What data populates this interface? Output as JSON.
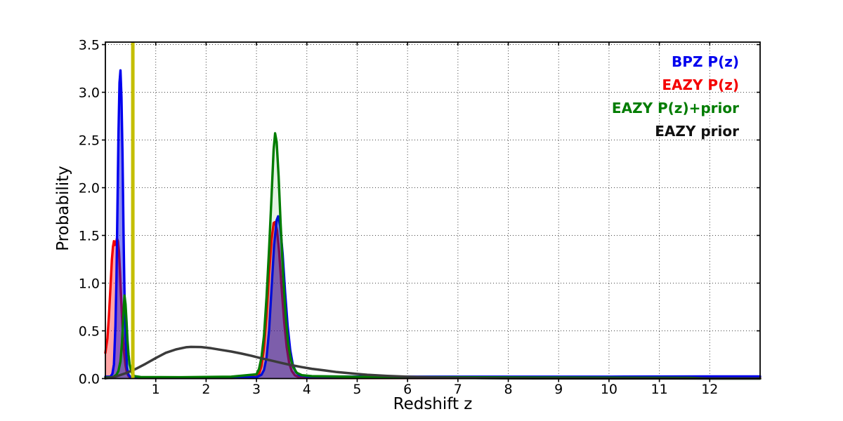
{
  "legend": {
    "items": [
      {
        "label": "BPZ P(z)",
        "color": "#0000ee"
      },
      {
        "label": "EAZY P(z)",
        "color": "#f40000"
      },
      {
        "label": "EAZY P(z)+prior",
        "color": "#007c00"
      },
      {
        "label": "EAZY prior",
        "color": "#111111"
      }
    ]
  },
  "chart_data": {
    "type": "line",
    "title": "",
    "xlabel": "Redshift z",
    "ylabel": "Probability",
    "xlim": [
      0,
      13
    ],
    "ylim": [
      0,
      3.53
    ],
    "grid": true,
    "grid_style": "dotted",
    "legend_position": "upper right",
    "x_ticks": [
      {
        "value": 1,
        "label": "1"
      },
      {
        "value": 2,
        "label": "2"
      },
      {
        "value": 3,
        "label": "3"
      },
      {
        "value": 4,
        "label": "4"
      },
      {
        "value": 5,
        "label": "5"
      },
      {
        "value": 6,
        "label": "6"
      },
      {
        "value": 7,
        "label": "7"
      },
      {
        "value": 8,
        "label": "8"
      },
      {
        "value": 9,
        "label": "9"
      },
      {
        "value": 10,
        "label": "10"
      },
      {
        "value": 11,
        "label": "11"
      },
      {
        "value": 12,
        "label": "12"
      }
    ],
    "y_ticks": [
      {
        "value": 0.0,
        "label": "0.0"
      },
      {
        "value": 0.5,
        "label": "0.5"
      },
      {
        "value": 1.0,
        "label": "1.0"
      },
      {
        "value": 1.5,
        "label": "1.5"
      },
      {
        "value": 2.0,
        "label": "2.0"
      },
      {
        "value": 2.5,
        "label": "2.5"
      },
      {
        "value": 3.0,
        "label": "3.0"
      },
      {
        "value": 3.5,
        "label": "3.5"
      }
    ],
    "vline": {
      "x": 0.545,
      "color": "#c4be00",
      "width": 5
    },
    "series": [
      {
        "name": "EAZY P(z)",
        "color": "#f40000",
        "fill": true,
        "fill_color": "#ff0000",
        "fill_opacity": 0.35,
        "line_width": 3.4,
        "points": [
          [
            0,
            0.27
          ],
          [
            0.04,
            0.42
          ],
          [
            0.07,
            0.65
          ],
          [
            0.1,
            0.95
          ],
          [
            0.13,
            1.25
          ],
          [
            0.15,
            1.38
          ],
          [
            0.17,
            1.44
          ],
          [
            0.19,
            1.4
          ],
          [
            0.21,
            1.42
          ],
          [
            0.23,
            1.47
          ],
          [
            0.25,
            1.44
          ],
          [
            0.27,
            1.33
          ],
          [
            0.29,
            1.12
          ],
          [
            0.31,
            0.88
          ],
          [
            0.33,
            0.64
          ],
          [
            0.35,
            0.44
          ],
          [
            0.37,
            0.28
          ],
          [
            0.4,
            0.14
          ],
          [
            0.43,
            0.06
          ],
          [
            0.46,
            0.025
          ],
          [
            0.5,
            0.01
          ],
          [
            0.7,
            0.006
          ],
          [
            1.5,
            0.005
          ],
          [
            2.5,
            0.006
          ],
          [
            3.0,
            0.02
          ],
          [
            3.05,
            0.05
          ],
          [
            3.1,
            0.13
          ],
          [
            3.15,
            0.32
          ],
          [
            3.2,
            0.66
          ],
          [
            3.25,
            1.1
          ],
          [
            3.3,
            1.46
          ],
          [
            3.34,
            1.63
          ],
          [
            3.37,
            1.64
          ],
          [
            3.41,
            1.55
          ],
          [
            3.45,
            1.33
          ],
          [
            3.5,
            0.95
          ],
          [
            3.55,
            0.6
          ],
          [
            3.6,
            0.33
          ],
          [
            3.65,
            0.16
          ],
          [
            3.7,
            0.08
          ],
          [
            3.76,
            0.035
          ],
          [
            3.85,
            0.012
          ],
          [
            4.0,
            0.006
          ],
          [
            6,
            0.005
          ],
          [
            13,
            0.005
          ]
        ]
      },
      {
        "name": "BPZ P(z)",
        "color": "#0000ee",
        "fill": true,
        "fill_color": "#0000dd",
        "fill_opacity": 0.45,
        "line_width": 3.4,
        "points": [
          [
            0,
            0.02
          ],
          [
            0.1,
            0.02
          ],
          [
            0.14,
            0.05
          ],
          [
            0.17,
            0.15
          ],
          [
            0.2,
            0.55
          ],
          [
            0.22,
            1.05
          ],
          [
            0.24,
            1.8
          ],
          [
            0.26,
            2.55
          ],
          [
            0.28,
            3.1
          ],
          [
            0.3,
            3.23
          ],
          [
            0.32,
            2.95
          ],
          [
            0.34,
            2.35
          ],
          [
            0.36,
            1.55
          ],
          [
            0.38,
            0.9
          ],
          [
            0.4,
            0.45
          ],
          [
            0.43,
            0.12
          ],
          [
            0.46,
            0.04
          ],
          [
            0.5,
            0.015
          ],
          [
            0.7,
            0.008
          ],
          [
            1.5,
            0.006
          ],
          [
            2.5,
            0.008
          ],
          [
            3.0,
            0.015
          ],
          [
            3.1,
            0.04
          ],
          [
            3.15,
            0.09
          ],
          [
            3.2,
            0.22
          ],
          [
            3.25,
            0.5
          ],
          [
            3.3,
            0.95
          ],
          [
            3.35,
            1.4
          ],
          [
            3.4,
            1.66
          ],
          [
            3.43,
            1.7
          ],
          [
            3.47,
            1.6
          ],
          [
            3.52,
            1.3
          ],
          [
            3.57,
            0.9
          ],
          [
            3.62,
            0.55
          ],
          [
            3.67,
            0.3
          ],
          [
            3.72,
            0.15
          ],
          [
            3.78,
            0.07
          ],
          [
            3.85,
            0.035
          ],
          [
            4.0,
            0.022
          ],
          [
            6,
            0.02
          ],
          [
            8,
            0.02
          ],
          [
            10,
            0.02
          ],
          [
            12,
            0.022
          ],
          [
            13,
            0.022
          ]
        ]
      },
      {
        "name": "EAZY P(z)+prior",
        "color": "#007c00",
        "fill": true,
        "fill_color": "#007c00",
        "fill_opacity": 0.1,
        "line_width": 3.4,
        "points": [
          [
            0,
            0.01
          ],
          [
            0.15,
            0.015
          ],
          [
            0.22,
            0.04
          ],
          [
            0.26,
            0.08
          ],
          [
            0.3,
            0.18
          ],
          [
            0.33,
            0.38
          ],
          [
            0.35,
            0.58
          ],
          [
            0.37,
            0.78
          ],
          [
            0.38,
            0.87
          ],
          [
            0.4,
            0.78
          ],
          [
            0.42,
            0.6
          ],
          [
            0.44,
            0.4
          ],
          [
            0.46,
            0.25
          ],
          [
            0.48,
            0.15
          ],
          [
            0.51,
            0.08
          ],
          [
            0.54,
            0.045
          ],
          [
            0.58,
            0.025
          ],
          [
            0.7,
            0.016
          ],
          [
            1.5,
            0.014
          ],
          [
            2.5,
            0.02
          ],
          [
            3.0,
            0.045
          ],
          [
            3.05,
            0.1
          ],
          [
            3.1,
            0.22
          ],
          [
            3.15,
            0.45
          ],
          [
            3.2,
            0.85
          ],
          [
            3.25,
            1.35
          ],
          [
            3.3,
            1.92
          ],
          [
            3.34,
            2.4
          ],
          [
            3.37,
            2.57
          ],
          [
            3.4,
            2.48
          ],
          [
            3.44,
            2.12
          ],
          [
            3.48,
            1.62
          ],
          [
            3.53,
            1.08
          ],
          [
            3.58,
            0.65
          ],
          [
            3.63,
            0.37
          ],
          [
            3.68,
            0.21
          ],
          [
            3.73,
            0.12
          ],
          [
            3.8,
            0.06
          ],
          [
            3.9,
            0.035
          ],
          [
            4.1,
            0.025
          ],
          [
            5,
            0.018
          ],
          [
            7,
            0.014
          ],
          [
            9,
            0.011
          ],
          [
            11,
            0.009
          ],
          [
            11.6,
            0.008
          ],
          [
            11.85,
            0.003
          ],
          [
            12.0,
            0.001
          ],
          [
            13,
            0.001
          ]
        ]
      },
      {
        "name": "EAZY prior",
        "color": "#3b3b3b",
        "fill": false,
        "fill_color": "none",
        "fill_opacity": 0,
        "line_width": 3.5,
        "points": [
          [
            0,
            0.002
          ],
          [
            0.2,
            0.02
          ],
          [
            0.4,
            0.055
          ],
          [
            0.6,
            0.1
          ],
          [
            0.8,
            0.155
          ],
          [
            1.0,
            0.215
          ],
          [
            1.2,
            0.27
          ],
          [
            1.4,
            0.305
          ],
          [
            1.6,
            0.328
          ],
          [
            1.7,
            0.332
          ],
          [
            1.9,
            0.33
          ],
          [
            2.1,
            0.318
          ],
          [
            2.3,
            0.3
          ],
          [
            2.5,
            0.283
          ],
          [
            2.7,
            0.262
          ],
          [
            2.9,
            0.238
          ],
          [
            3.1,
            0.212
          ],
          [
            3.3,
            0.188
          ],
          [
            3.5,
            0.163
          ],
          [
            3.7,
            0.14
          ],
          [
            3.9,
            0.12
          ],
          [
            4.1,
            0.102
          ],
          [
            4.35,
            0.085
          ],
          [
            4.6,
            0.068
          ],
          [
            4.9,
            0.053
          ],
          [
            5.2,
            0.04
          ],
          [
            5.6,
            0.028
          ],
          [
            6.0,
            0.019
          ],
          [
            6.5,
            0.012
          ],
          [
            7.0,
            0.0075
          ],
          [
            7.5,
            0.0045
          ],
          [
            8.0,
            0.003
          ],
          [
            9.0,
            0.0015
          ],
          [
            10,
            0.0008
          ],
          [
            11,
            0.0004
          ],
          [
            13,
            0.0002
          ]
        ]
      }
    ]
  }
}
